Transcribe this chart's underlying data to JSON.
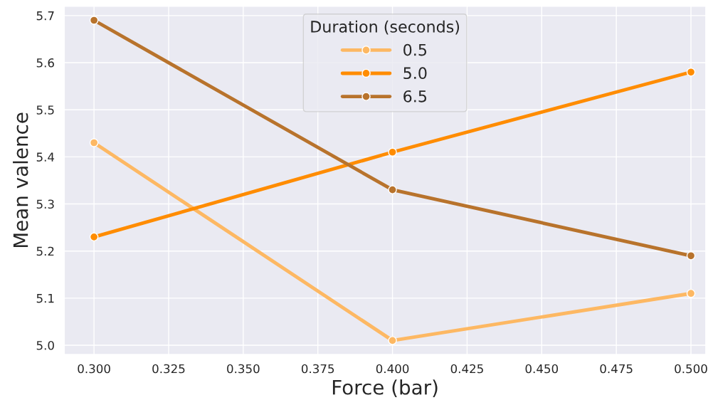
{
  "chart_data": {
    "type": "line",
    "xlabel": "Force (bar)",
    "ylabel": "Mean valence",
    "legend_title": "Duration (seconds)",
    "legend": "top center",
    "grid": true,
    "marker": "circle",
    "line_style": "solid",
    "x": [
      0.3,
      0.4,
      0.5
    ],
    "series": [
      {
        "name": "0.5",
        "color": "#fdb863",
        "values": [
          5.43,
          5.01,
          5.11
        ]
      },
      {
        "name": "5.0",
        "color": "#ff8c00",
        "values": [
          5.23,
          5.41,
          5.58
        ]
      },
      {
        "name": "6.5",
        "color": "#b8732c",
        "values": [
          5.69,
          5.33,
          5.19
        ]
      }
    ],
    "xlim": [
      0.29,
      0.505
    ],
    "ylim": [
      4.98,
      5.72
    ],
    "xticks": [
      {
        "value": 0.3,
        "label": "0.300"
      },
      {
        "value": 0.325,
        "label": "0.325"
      },
      {
        "value": 0.35,
        "label": "0.350"
      },
      {
        "value": 0.375,
        "label": "0.375"
      },
      {
        "value": 0.4,
        "label": "0.400"
      },
      {
        "value": 0.425,
        "label": "0.425"
      },
      {
        "value": 0.45,
        "label": "0.450"
      },
      {
        "value": 0.475,
        "label": "0.475"
      },
      {
        "value": 0.5,
        "label": "0.500"
      }
    ],
    "yticks": [
      {
        "value": 5.0,
        "label": "5.0"
      },
      {
        "value": 5.1,
        "label": "5.1"
      },
      {
        "value": 5.2,
        "label": "5.2"
      },
      {
        "value": 5.3,
        "label": "5.3"
      },
      {
        "value": 5.4,
        "label": "5.4"
      },
      {
        "value": 5.5,
        "label": "5.5"
      },
      {
        "value": 5.6,
        "label": "5.6"
      },
      {
        "value": 5.7,
        "label": "5.7"
      }
    ]
  }
}
